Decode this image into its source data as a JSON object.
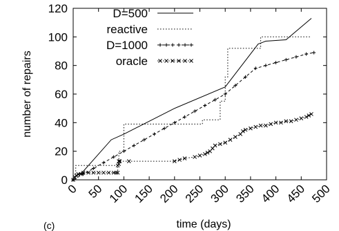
{
  "chart_data": {
    "type": "line",
    "title": "",
    "xlabel": "time (days)",
    "ylabel": "number of repairs",
    "xlim": [
      0,
      500
    ],
    "ylim": [
      0,
      120
    ],
    "x_ticks": [
      "0",
      "50",
      "100",
      "150",
      "200",
      "250",
      "300",
      "350",
      "400",
      "450",
      "500"
    ],
    "y_ticks": [
      "0",
      "20",
      "40",
      "60",
      "80",
      "100",
      "120"
    ],
    "grid": false,
    "legend_position": "top-left",
    "footer_text": "(c)",
    "series": [
      {
        "name": "D=500",
        "style": "solid",
        "marker": "none",
        "x": [
          0,
          20,
          75,
          100,
          200,
          300,
          365,
          380,
          420,
          470
        ],
        "y": [
          1,
          6,
          28,
          32,
          50,
          65,
          95,
          97,
          98,
          113
        ]
      },
      {
        "name": "reactive",
        "style": "dotted",
        "marker": "none",
        "x": [
          0,
          5,
          5,
          90,
          90,
          100,
          100,
          255,
          255,
          290,
          290,
          300,
          300,
          305,
          305,
          370,
          370,
          470
        ],
        "y": [
          0,
          0,
          10,
          10,
          20,
          20,
          39,
          39,
          42,
          42,
          55,
          55,
          72,
          72,
          92,
          92,
          100,
          100
        ]
      },
      {
        "name": "D=1000",
        "style": "dashed",
        "marker": "plus",
        "x": [
          0,
          20,
          40,
          60,
          80,
          100,
          120,
          140,
          160,
          180,
          200,
          220,
          240,
          260,
          280,
          300,
          320,
          340,
          360,
          380,
          400,
          420,
          440,
          460,
          475
        ],
        "y": [
          0,
          4,
          8,
          12,
          16,
          20,
          24,
          28,
          32,
          36,
          40,
          44,
          48,
          52,
          56,
          60,
          66,
          72,
          78,
          80,
          82,
          84,
          86,
          88,
          89
        ]
      },
      {
        "name": "oracle",
        "style": "dotted",
        "marker": "cross",
        "x": [
          0,
          3,
          6,
          10,
          15,
          20,
          30,
          40,
          50,
          60,
          70,
          80,
          85,
          88,
          88,
          90,
          90,
          92,
          110,
          200,
          210,
          220,
          240,
          250,
          260,
          265,
          270,
          275,
          280,
          290,
          300,
          310,
          320,
          330,
          335,
          340,
          350,
          360,
          370,
          380,
          390,
          400,
          410,
          420,
          430,
          440,
          450,
          460,
          465,
          470
        ],
        "y": [
          0,
          2,
          3,
          4,
          4,
          5,
          5,
          5,
          5,
          5,
          5,
          5,
          5,
          5,
          10,
          11,
          13,
          13,
          13,
          13,
          14,
          15,
          16,
          17,
          18,
          19,
          20,
          22,
          24,
          25,
          26,
          28,
          30,
          32,
          34,
          35,
          36,
          37,
          38,
          38,
          39,
          40,
          40,
          41,
          41,
          42,
          43,
          44,
          45,
          46
        ]
      }
    ]
  }
}
